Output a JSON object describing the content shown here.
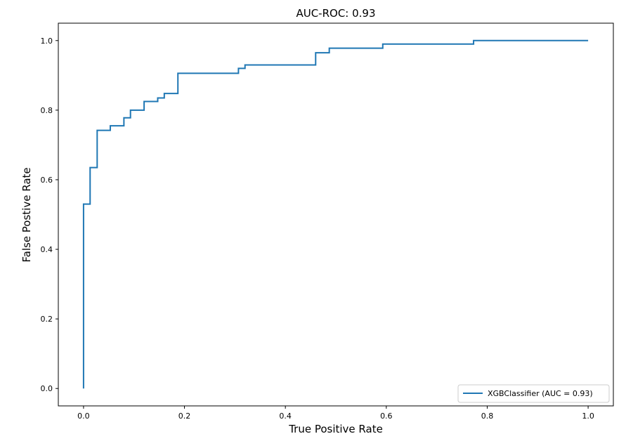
{
  "chart_data": {
    "type": "line",
    "title": "AUC-ROC: 0.93",
    "xlabel": "True Positive Rate",
    "ylabel": "False Postive Rate",
    "xlim": [
      -0.05,
      1.05
    ],
    "ylim": [
      -0.05,
      1.05
    ],
    "xticks": [
      0.0,
      0.2,
      0.4,
      0.6,
      0.8,
      1.0
    ],
    "xtick_labels": [
      "0.0",
      "0.2",
      "0.4",
      "0.6",
      "0.8",
      "1.0"
    ],
    "yticks": [
      0.0,
      0.2,
      0.4,
      0.6,
      0.8,
      1.0
    ],
    "ytick_labels": [
      "0.0",
      "0.2",
      "0.4",
      "0.6",
      "0.8",
      "1.0"
    ],
    "grid": false,
    "legend_position": "lower right",
    "series": [
      {
        "name": "XGBClassifier (AUC = 0.93)",
        "color": "#1f77b4",
        "step": true,
        "x": [
          0.0,
          0.0,
          0.013,
          0.013,
          0.027,
          0.027,
          0.053,
          0.053,
          0.08,
          0.08,
          0.093,
          0.093,
          0.12,
          0.12,
          0.147,
          0.147,
          0.16,
          0.16,
          0.187,
          0.187,
          0.307,
          0.307,
          0.32,
          0.32,
          0.46,
          0.46,
          0.487,
          0.487,
          0.593,
          0.593,
          0.773,
          0.773,
          1.0
        ],
        "y": [
          0.0,
          0.53,
          0.53,
          0.635,
          0.635,
          0.742,
          0.742,
          0.755,
          0.755,
          0.778,
          0.778,
          0.8,
          0.8,
          0.825,
          0.825,
          0.835,
          0.835,
          0.848,
          0.848,
          0.906,
          0.906,
          0.92,
          0.92,
          0.93,
          0.93,
          0.965,
          0.965,
          0.978,
          0.978,
          0.99,
          0.99,
          1.0,
          1.0
        ]
      }
    ]
  }
}
